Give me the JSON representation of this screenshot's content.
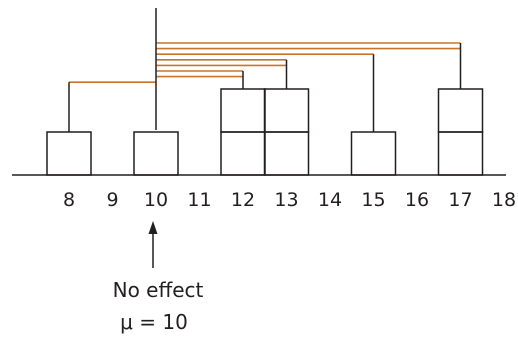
{
  "axis": {
    "ticks": [
      "8",
      "9",
      "10",
      "11",
      "12",
      "13",
      "14",
      "15",
      "16",
      "17",
      "18"
    ]
  },
  "boxes": [
    {
      "value": 8,
      "count": 1
    },
    {
      "value": 10,
      "count": 1
    },
    {
      "value": 12,
      "count": 2
    },
    {
      "value": 13,
      "count": 2
    },
    {
      "value": 15,
      "count": 1
    },
    {
      "value": 17,
      "count": 2
    }
  ],
  "connectors": [
    {
      "from": 17
    },
    {
      "from": 17
    },
    {
      "from": 15
    },
    {
      "from": 13
    },
    {
      "from": 13
    },
    {
      "from": 12
    },
    {
      "from": 12
    },
    {
      "from": 8
    }
  ],
  "balance_point": 10,
  "annotation": {
    "line1": "No effect",
    "line2": "μ = 10"
  },
  "colors": {
    "ink": "#231f20",
    "connector": "#c8742a",
    "background": "#ffffff"
  }
}
